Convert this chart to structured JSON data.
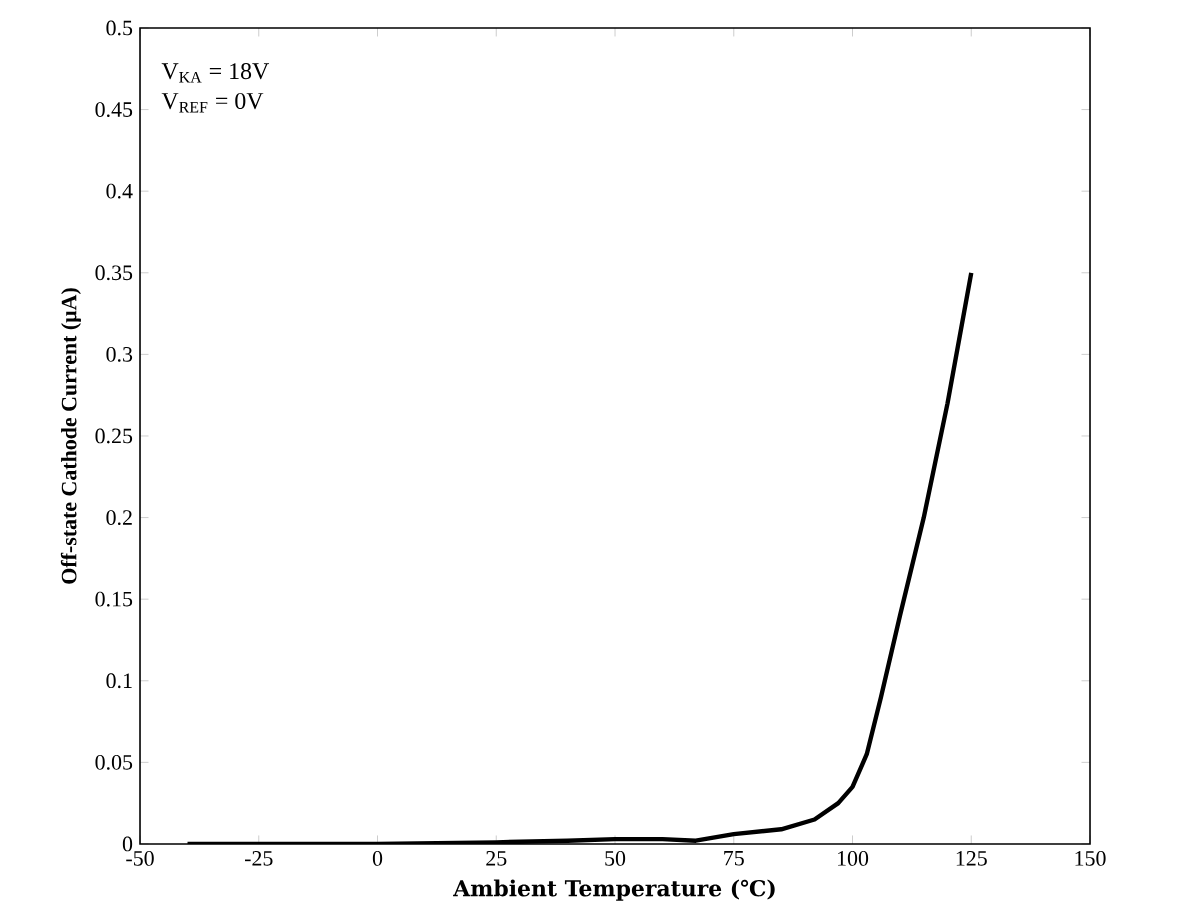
{
  "chart_data": {
    "type": "line",
    "xlabel": "Ambient Temperature (℃)",
    "ylabel": "Off-state Cathode Current (μA)",
    "annotations": [
      "V$_{KA}$ = 18V",
      "V$_{REF}$ = 0V"
    ],
    "series": [
      {
        "color": "#000000",
        "x": [
          -40,
          0,
          25,
          40,
          50,
          60,
          67,
          75,
          85,
          92,
          97,
          100,
          103,
          106,
          110,
          115,
          120,
          125
        ],
        "values": [
          0,
          0,
          0.001,
          0.002,
          0.003,
          0.003,
          0.002,
          0.006,
          0.009,
          0.015,
          0.025,
          0.035,
          0.055,
          0.09,
          0.14,
          0.2,
          0.27,
          0.35
        ]
      }
    ],
    "xlim": [
      -50,
      150
    ],
    "xticks": [
      -50,
      -25,
      0,
      25,
      50,
      75,
      100,
      125,
      150
    ],
    "ylim": [
      0,
      0.5
    ],
    "yticks": [
      0,
      0.05,
      0.1,
      0.15,
      0.2,
      0.25,
      0.3,
      0.35,
      0.4,
      0.45,
      0.5
    ],
    "grid": false,
    "marker": "none",
    "line_style": "solid"
  }
}
